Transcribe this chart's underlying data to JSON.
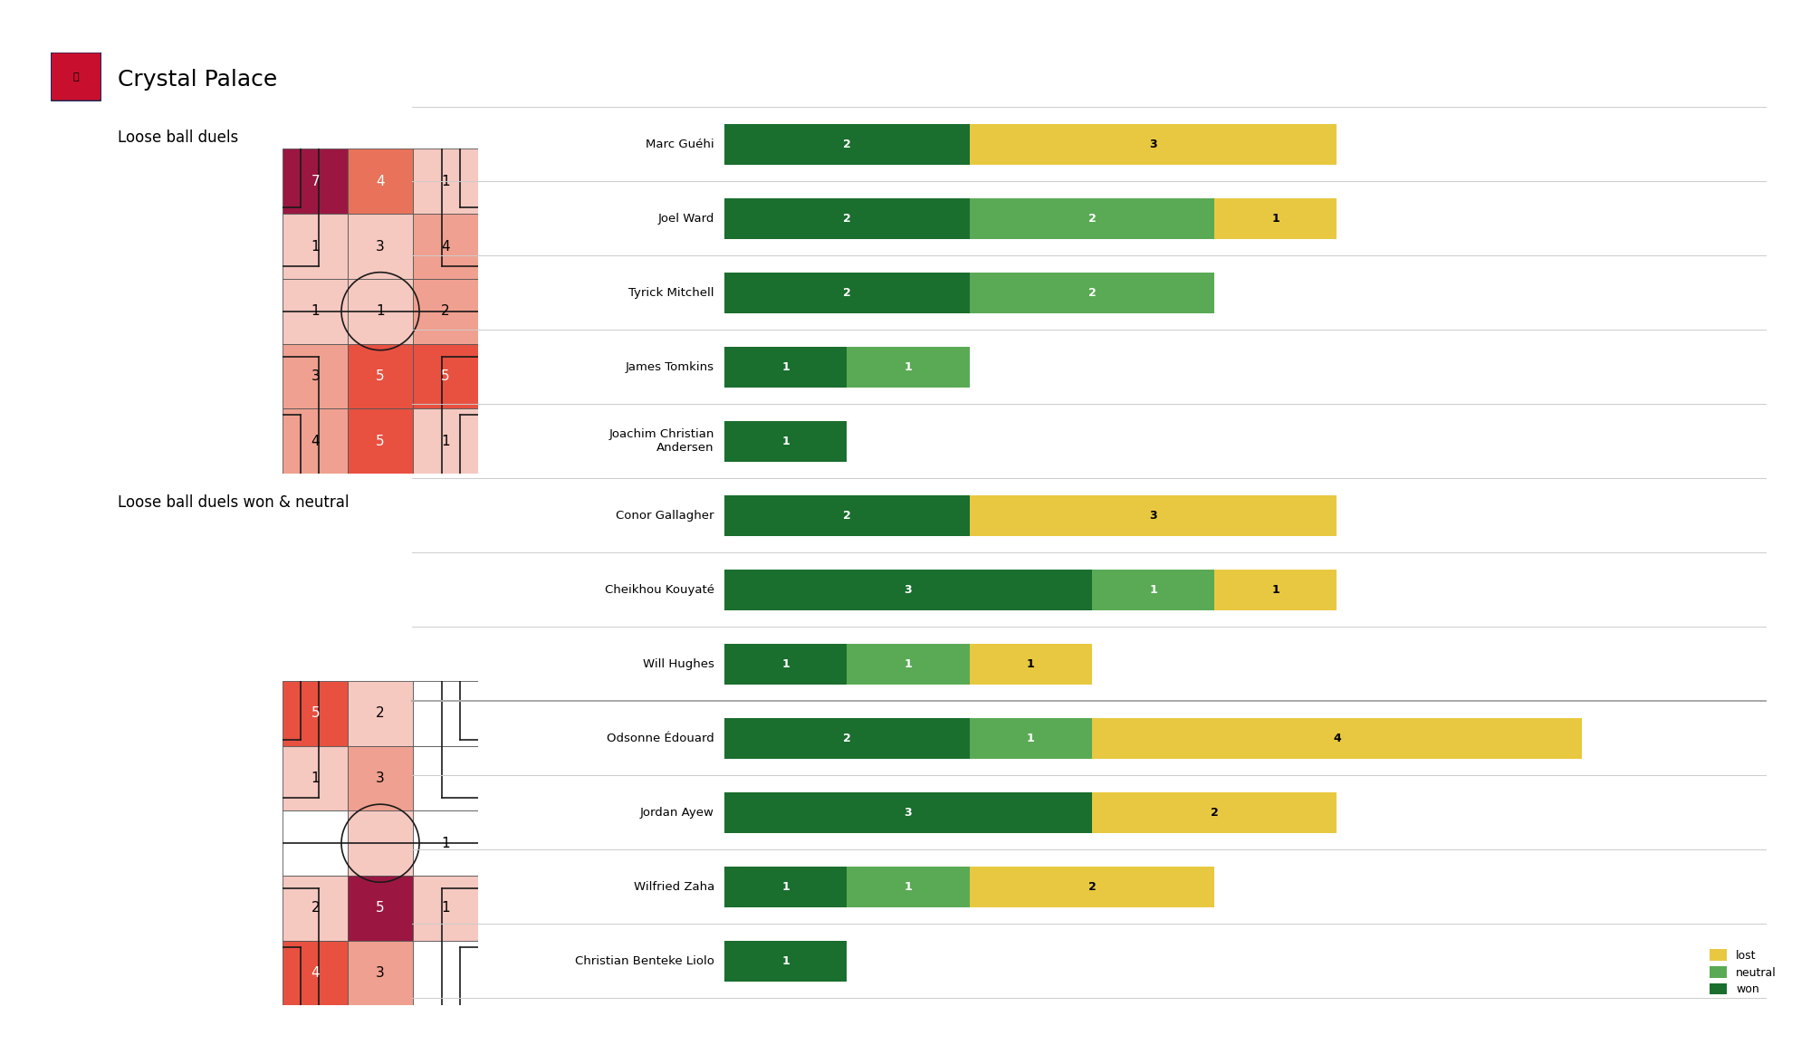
{
  "title": "Crystal Palace",
  "subtitle1": "Loose ball duels",
  "subtitle2": "Loose ball duels won & neutral",
  "heatmap1": {
    "values": [
      [
        7,
        4,
        1
      ],
      [
        1,
        3,
        4
      ],
      [
        1,
        1,
        2
      ],
      [
        3,
        5,
        5
      ],
      [
        4,
        5,
        1
      ]
    ],
    "colors": [
      [
        "#9b1742",
        "#e8725a",
        "#f5c8c0"
      ],
      [
        "#f5c8c0",
        "#f5c8c0",
        "#f0a090"
      ],
      [
        "#f5c8c0",
        "#f5c8c0",
        "#f0a090"
      ],
      [
        "#f0a090",
        "#e85040",
        "#e85040"
      ],
      [
        "#f0a090",
        "#e85040",
        "#f5c8c0"
      ]
    ],
    "text_colors": [
      [
        "white",
        "white",
        "black"
      ],
      [
        "black",
        "black",
        "black"
      ],
      [
        "black",
        "black",
        "black"
      ],
      [
        "black",
        "white",
        "white"
      ],
      [
        "black",
        "white",
        "black"
      ]
    ]
  },
  "heatmap2": {
    "values": [
      [
        5,
        2,
        0
      ],
      [
        1,
        3,
        0
      ],
      [
        0,
        0,
        1
      ],
      [
        2,
        5,
        1
      ],
      [
        4,
        3,
        0
      ]
    ],
    "colors": [
      [
        "#e85040",
        "#f5c8c0",
        "#ffffff"
      ],
      [
        "#f5c8c0",
        "#f0a090",
        "#ffffff"
      ],
      [
        "#ffffff",
        "#f5c8c0",
        "#ffffff"
      ],
      [
        "#f5c8c0",
        "#9b1742",
        "#f5c8c0"
      ],
      [
        "#e85040",
        "#f0a090",
        "#ffffff"
      ]
    ],
    "text_colors": [
      [
        "white",
        "black",
        "black"
      ],
      [
        "black",
        "black",
        "black"
      ],
      [
        "black",
        "black",
        "black"
      ],
      [
        "black",
        "white",
        "black"
      ],
      [
        "white",
        "black",
        "black"
      ]
    ]
  },
  "players": [
    "Marc Guéhi",
    "Joel Ward",
    "Tyrick Mitchell",
    "James Tomkins",
    "Joachim Christian\nAndersen",
    "Conor Gallagher",
    "Cheikhou Kouyaté",
    "Will Hughes",
    "Odsonne Édouard",
    "Jordan Ayew",
    "Wilfried Zaha",
    "Christian Benteke Liolo"
  ],
  "won": [
    2,
    2,
    2,
    1,
    1,
    2,
    3,
    1,
    2,
    3,
    1,
    1
  ],
  "neutral": [
    0,
    2,
    2,
    1,
    0,
    0,
    1,
    1,
    1,
    0,
    1,
    0
  ],
  "lost": [
    3,
    1,
    0,
    0,
    0,
    3,
    1,
    1,
    4,
    2,
    2,
    0
  ],
  "color_won": "#1a6e2e",
  "color_neutral": "#5aaa55",
  "color_lost": "#e8c840",
  "bg_color": "#ffffff",
  "pitch_line_color": "#1a1a1a",
  "divider_color": "#cccccc",
  "separator_after_index": 7
}
